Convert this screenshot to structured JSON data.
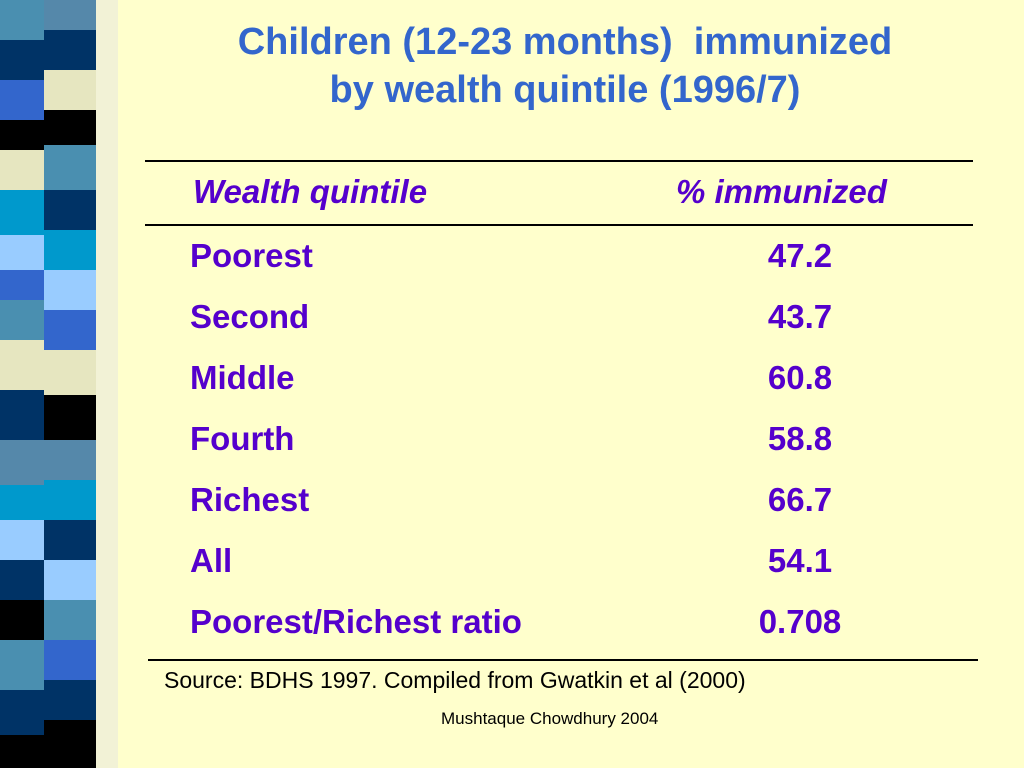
{
  "slide": {
    "title_line1": "Children (12-23 months)  immunized",
    "title_line2": "by wealth quintile (1996/7)"
  },
  "table": {
    "columns": [
      "Wealth quintile",
      "% immunized"
    ],
    "rows": [
      {
        "label": "Poorest",
        "value": "47.2"
      },
      {
        "label": "Second",
        "value": "43.7"
      },
      {
        "label": "Middle",
        "value": "60.8"
      },
      {
        "label": "Fourth",
        "value": "58.8"
      },
      {
        "label": "Richest",
        "value": "66.7"
      },
      {
        "label": "All",
        "value": "54.1"
      },
      {
        "label": "Poorest/Richest ratio",
        "value": "0.708"
      }
    ]
  },
  "footer": {
    "source": "Source: BDHS 1997. Compiled from Gwatkin et al (2000)",
    "author": "Mushtaque Chowdhury 2004"
  },
  "colors": {
    "background": "#FFFFCC",
    "title": "#3366CC",
    "table_text": "#5500CC",
    "stripe_palette": [
      "#4A8FB0",
      "#003366",
      "#3366CC",
      "#000000",
      "#E6E6C0",
      "#0099CC",
      "#99CCFF",
      "#5588AA"
    ]
  }
}
